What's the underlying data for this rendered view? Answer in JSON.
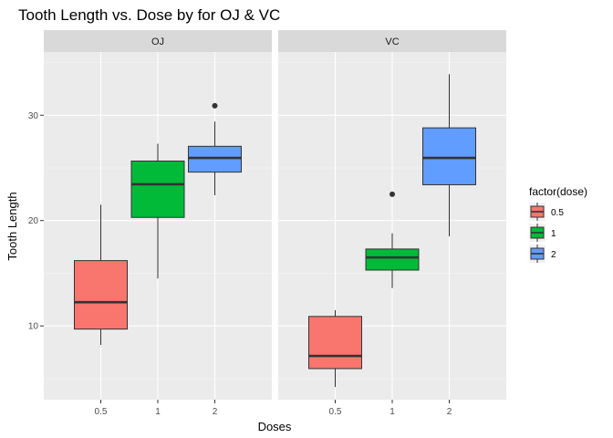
{
  "chart_data": {
    "type": "boxplot",
    "title": "Tooth Length vs. Dose  by for OJ & VC",
    "xlabel": "Doses",
    "ylabel": "Tooth Length",
    "categories": [
      "0.5",
      "1",
      "2"
    ],
    "ylim": [
      3,
      36
    ],
    "yticks": [
      10,
      20,
      30
    ],
    "grid": true,
    "legend": {
      "title": "factor(dose)",
      "position": "right",
      "entries": [
        {
          "label": "0.5",
          "color": "#F8766D"
        },
        {
          "label": "1",
          "color": "#00BA38"
        },
        {
          "label": "2",
          "color": "#619CFF"
        }
      ]
    },
    "panels": [
      {
        "label": "OJ",
        "boxes": [
          {
            "category": "0.5",
            "min": 8.2,
            "q1": 9.7,
            "median": 12.25,
            "q3": 16.2,
            "max": 21.5,
            "outliers": []
          },
          {
            "category": "1",
            "min": 14.5,
            "q1": 20.3,
            "median": 23.45,
            "q3": 25.65,
            "max": 27.3,
            "outliers": []
          },
          {
            "category": "2",
            "min": 22.4,
            "q1": 24.6,
            "median": 25.95,
            "q3": 27.05,
            "max": 29.4,
            "outliers": [
              30.9
            ]
          }
        ]
      },
      {
        "label": "VC",
        "boxes": [
          {
            "category": "0.5",
            "min": 4.2,
            "q1": 5.95,
            "median": 7.15,
            "q3": 10.9,
            "max": 11.5,
            "outliers": []
          },
          {
            "category": "1",
            "min": 13.6,
            "q1": 15.3,
            "median": 16.5,
            "q3": 17.3,
            "max": 18.8,
            "outliers": [
              22.5
            ]
          },
          {
            "category": "2",
            "min": 18.5,
            "q1": 23.4,
            "median": 25.95,
            "q3": 28.8,
            "max": 33.9,
            "outliers": []
          }
        ]
      }
    ]
  }
}
